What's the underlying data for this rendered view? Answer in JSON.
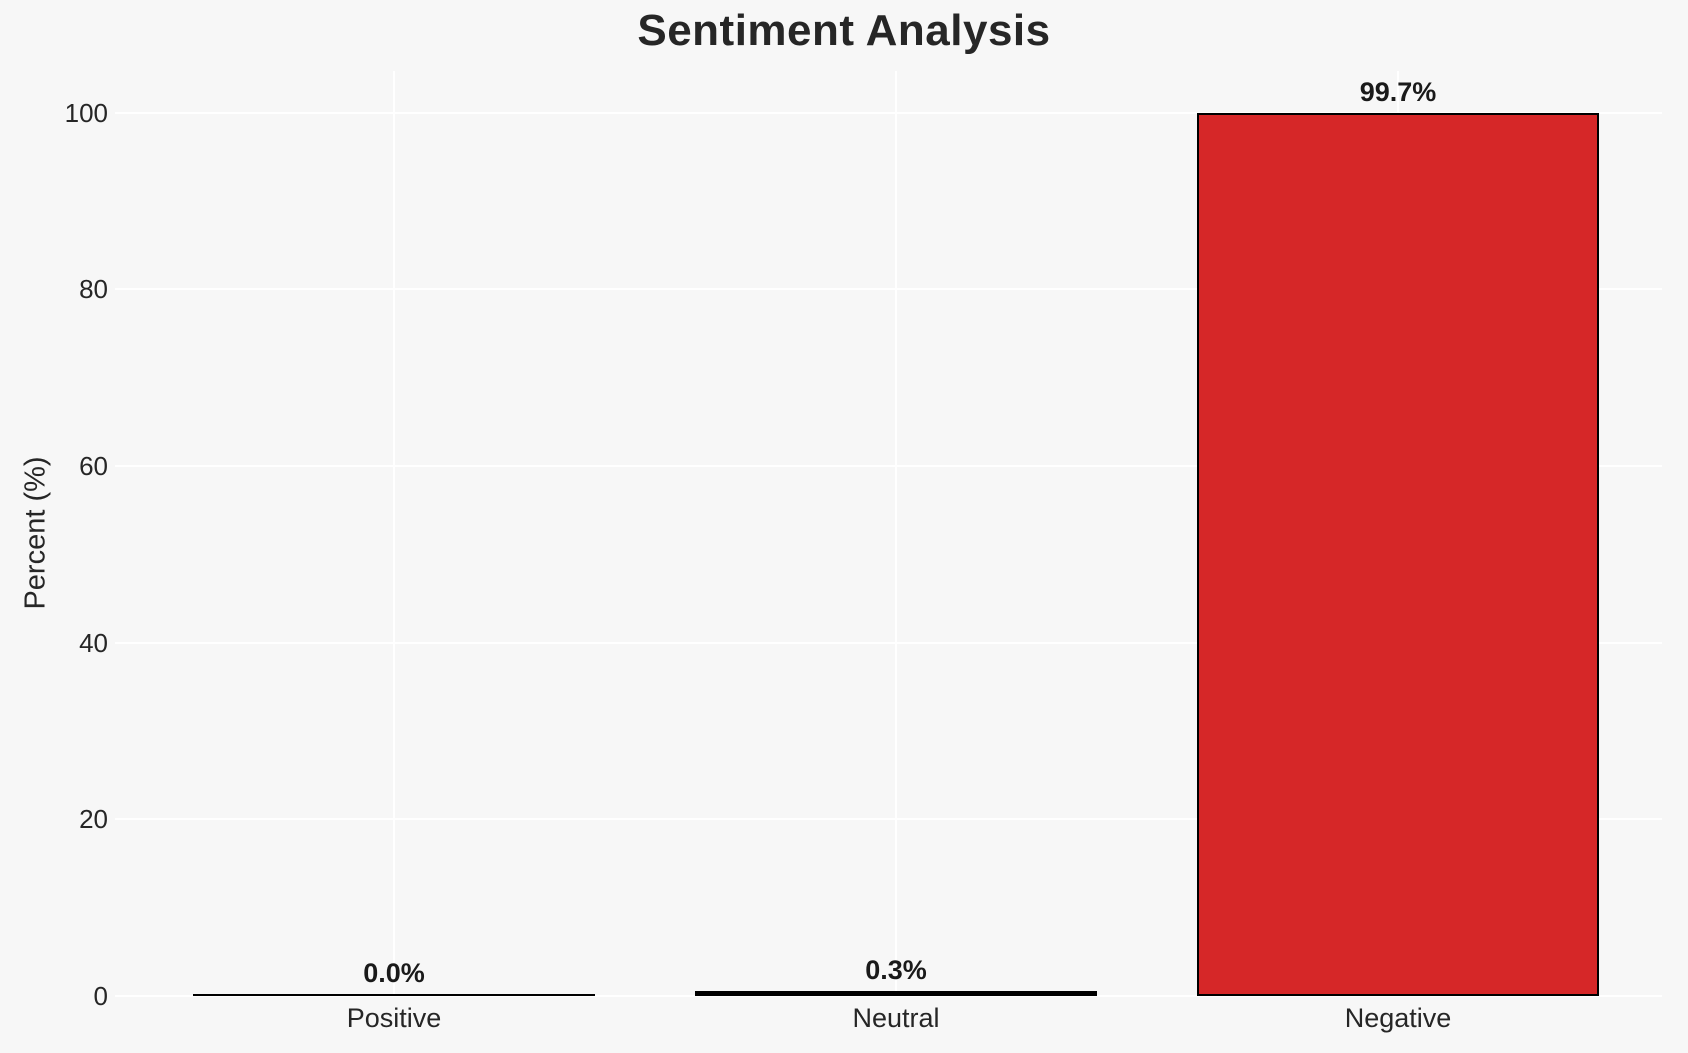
{
  "chart_data": {
    "type": "bar",
    "title": "Sentiment Analysis",
    "ylabel": "Percent (%)",
    "xlabel": "",
    "categories": [
      "Positive",
      "Neutral",
      "Negative"
    ],
    "values": [
      0.0,
      0.3,
      99.7
    ],
    "bar_labels": [
      "0.0%",
      "0.3%",
      "99.7%"
    ],
    "yticks": [
      0,
      20,
      40,
      60,
      80,
      100
    ],
    "ylim": [
      0,
      104.7
    ],
    "grid": true,
    "legend": false,
    "layout_hints": {
      "grid_horizontal_at_yticks": true,
      "grid_vertical_at_category_centers": true,
      "value_labels_above_bars": true
    },
    "colors": {
      "background": "#f7f7f7",
      "grid": "#ffffff",
      "bar_fills": [
        null,
        null,
        "#d62728"
      ],
      "bar_edge": "#000000",
      "tick_text": "#262626",
      "title_text": "#262626",
      "value_label_text": "#1a1a1a"
    }
  }
}
